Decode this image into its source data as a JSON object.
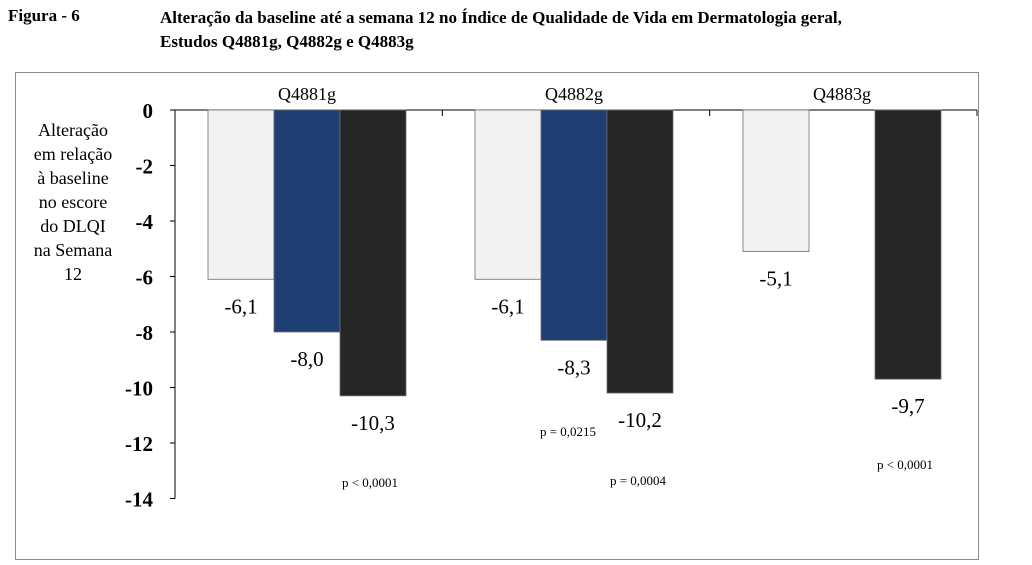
{
  "figure": {
    "label": "Figura - 6",
    "title_lines": [
      "Alteração da baseline até a semana 12 no Índice de Qualidade de Vida em Dermatologia geral,",
      "Estudos Q4881g, Q4882g e Q4883g"
    ]
  },
  "chart_data": {
    "type": "bar",
    "title": "",
    "ylabel_lines": [
      "Alteração",
      "em relação",
      "à baseline",
      "no escore",
      "do DLQI",
      "na Semana",
      "12"
    ],
    "xlabel": "",
    "ylim": [
      -14,
      0
    ],
    "yticks": [
      0,
      -2,
      -4,
      -6,
      -8,
      -10,
      -12,
      -14
    ],
    "grid": false,
    "legend": "none",
    "groups": [
      {
        "name": "Q4881g",
        "bars": [
          {
            "value": -6.1,
            "label": "-6,1",
            "color": "#f2f2f2"
          },
          {
            "value": -8.0,
            "label": "-8,0",
            "color": "#1f3f73"
          },
          {
            "value": -10.3,
            "label": "-10,3",
            "color": "#262626"
          }
        ],
        "pvalues": [
          {
            "text": "p < 0,0001",
            "for_bar": 2
          }
        ]
      },
      {
        "name": "Q4882g",
        "bars": [
          {
            "value": -6.1,
            "label": "-6,1",
            "color": "#f2f2f2"
          },
          {
            "value": -8.3,
            "label": "-8,3",
            "color": "#1f3f73"
          },
          {
            "value": -10.2,
            "label": "-10,2",
            "color": "#262626"
          }
        ],
        "pvalues": [
          {
            "text": "p = 0,0215",
            "for_bar": 1
          },
          {
            "text": "p = 0,0004",
            "for_bar": 2
          }
        ]
      },
      {
        "name": "Q4883g",
        "bars": [
          {
            "value": -5.1,
            "label": "-5,1",
            "color": "#f2f2f2"
          },
          {
            "value": null,
            "label": "",
            "color": "#1f3f73"
          },
          {
            "value": -9.7,
            "label": "-9,7",
            "color": "#262626"
          }
        ],
        "pvalues": [
          {
            "text": "p < 0,0001",
            "for_bar": 2
          }
        ]
      }
    ]
  }
}
